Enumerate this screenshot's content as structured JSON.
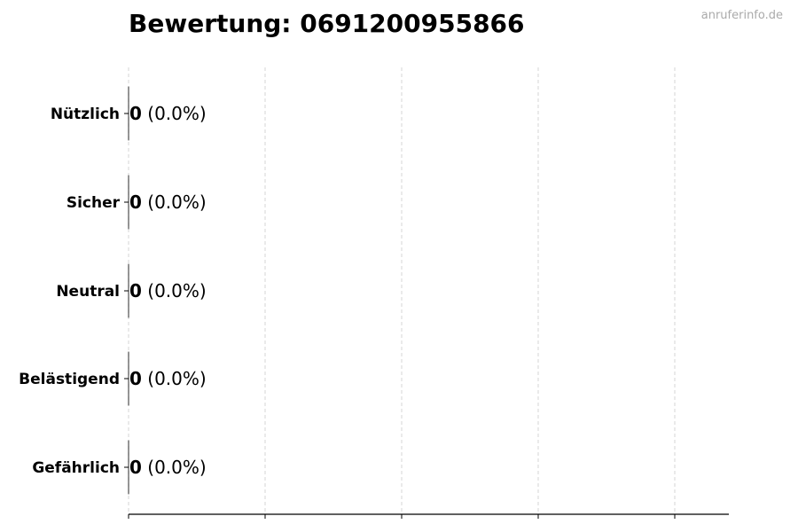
{
  "watermark": "anruferinfo.de",
  "chart_data": {
    "type": "bar",
    "orientation": "horizontal",
    "title": "Bewertung: 0691200955866",
    "categories": [
      "Nützlich",
      "Sicher",
      "Neutral",
      "Belästigend",
      "Gefährlich"
    ],
    "values": [
      0,
      0,
      0,
      0,
      0
    ],
    "data_labels": [
      {
        "count": "0",
        "percent": "(0.0%)"
      },
      {
        "count": "0",
        "percent": "(0.0%)"
      },
      {
        "count": "0",
        "percent": "(0.0%)"
      },
      {
        "count": "0",
        "percent": "(0.0%)"
      },
      {
        "count": "0",
        "percent": "(0.0%)"
      }
    ],
    "xlabel": "",
    "ylabel": "",
    "x_tick_labels_shown": false,
    "grid": "vertical dashed",
    "grid_color": "#cccccc",
    "bar_edge_color": "#000000"
  }
}
